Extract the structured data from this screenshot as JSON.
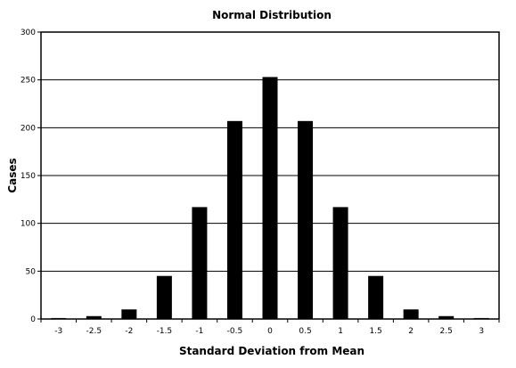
{
  "chart_data": {
    "type": "bar",
    "title": "Normal Distribution",
    "xlabel": "Standard Deviation from Mean",
    "ylabel": "Cases",
    "categories": [
      "-3",
      "-2.5",
      "-2",
      "-1.5",
      "-1",
      "-0.5",
      "0",
      "0.5",
      "1",
      "1.5",
      "2",
      "2.5",
      "3"
    ],
    "values": [
      1,
      3,
      10,
      45,
      117,
      207,
      253,
      207,
      117,
      45,
      10,
      3,
      1
    ],
    "ylim": [
      0,
      300
    ],
    "yticks": [
      0,
      50,
      100,
      150,
      200,
      250,
      300
    ],
    "grid": true,
    "legend": "none",
    "bar_color": "#000000"
  }
}
